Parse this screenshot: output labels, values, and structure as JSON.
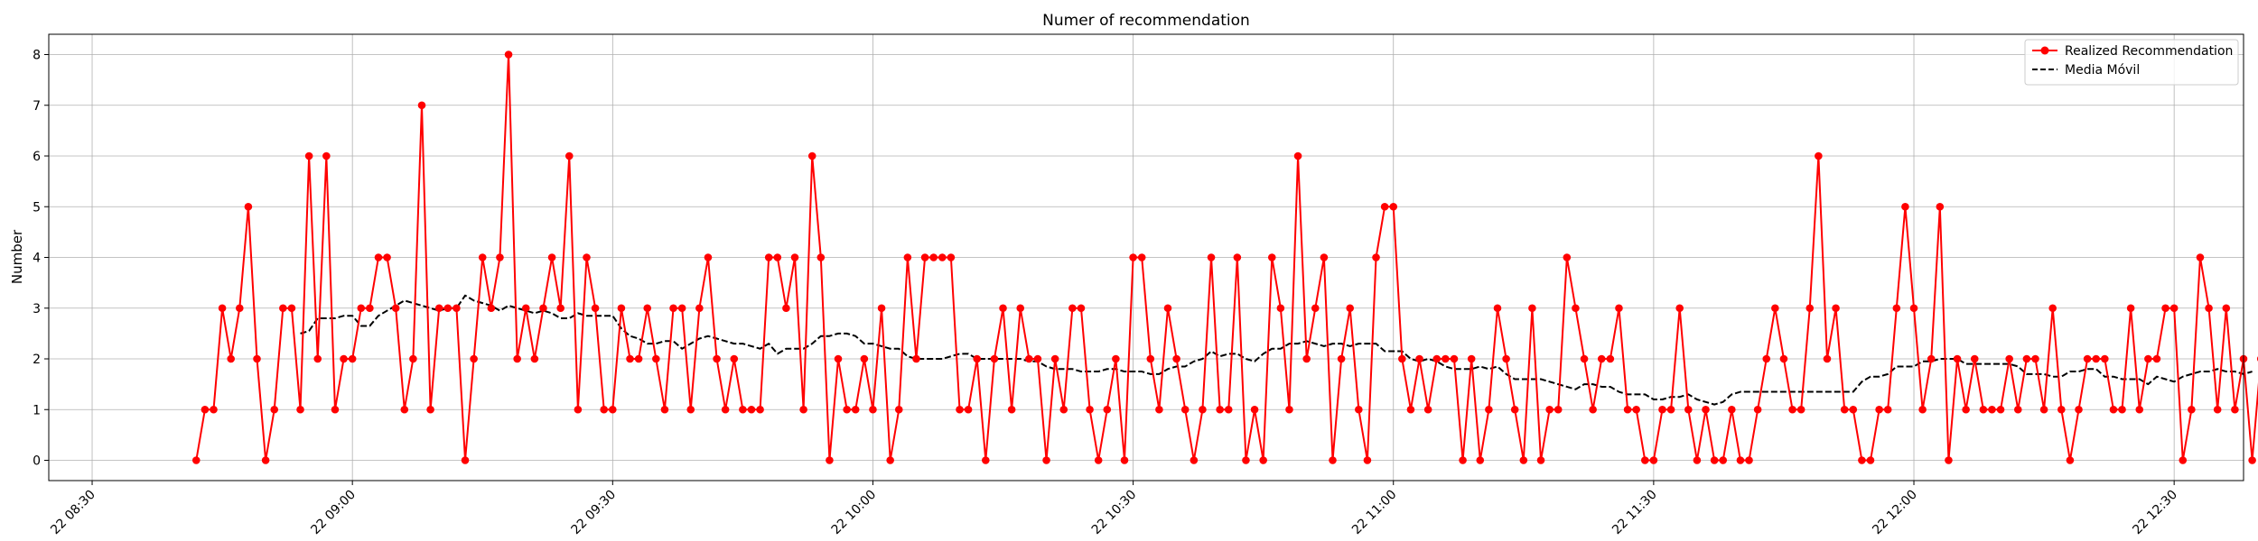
{
  "chart_data": {
    "type": "line",
    "title": "Numer of recommendation",
    "xlabel": "",
    "ylabel": "Number",
    "grid": true,
    "legend_position": "top-right",
    "xlim": [
      "2024-01-22T08:25",
      "2024-01-22T12:38"
    ],
    "ylim": [
      -0.4,
      8.4
    ],
    "x_start": "2024-01-22T08:42",
    "x_step_minutes": 1,
    "x_ticks": [
      {
        "value": "2024-01-22T08:30",
        "label": "22 08:30"
      },
      {
        "value": "2024-01-22T09:00",
        "label": "22 09:00"
      },
      {
        "value": "2024-01-22T09:30",
        "label": "22 09:30"
      },
      {
        "value": "2024-01-22T10:00",
        "label": "22 10:00"
      },
      {
        "value": "2024-01-22T10:30",
        "label": "22 10:30"
      },
      {
        "value": "2024-01-22T11:00",
        "label": "22 11:00"
      },
      {
        "value": "2024-01-22T11:30",
        "label": "22 11:30"
      },
      {
        "value": "2024-01-22T12:00",
        "label": "22 12:00"
      },
      {
        "value": "2024-01-22T12:30",
        "label": "22 12:30"
      }
    ],
    "y_ticks": [
      0,
      1,
      2,
      3,
      4,
      5,
      6,
      7,
      8
    ],
    "series": [
      {
        "name": "Realized Recommendation",
        "color": "#ff0000",
        "style": "solid",
        "marker": "circle",
        "values": [
          0,
          1,
          1,
          3,
          2,
          3,
          5,
          2,
          0,
          1,
          3,
          3,
          1,
          6,
          2,
          6,
          1,
          2,
          2,
          3,
          3,
          4,
          4,
          3,
          1,
          2,
          7,
          1,
          3,
          3,
          3,
          0,
          2,
          4,
          3,
          4,
          8,
          2,
          3,
          2,
          3,
          4,
          3,
          6,
          1,
          4,
          3,
          1,
          1,
          3,
          2,
          2,
          3,
          2,
          1,
          3,
          3,
          1,
          3,
          4,
          2,
          1,
          2,
          1,
          1,
          1,
          4,
          4,
          3,
          4,
          1,
          6,
          4,
          0,
          2,
          1,
          1,
          2,
          1,
          3,
          0,
          1,
          4,
          2,
          4,
          4,
          4,
          4,
          1,
          1,
          2,
          0,
          2,
          3,
          1,
          3,
          2,
          2,
          0,
          2,
          1,
          3,
          3,
          1,
          0,
          1,
          2,
          0,
          4,
          4,
          2,
          1,
          3,
          2,
          1,
          0,
          1,
          4,
          1,
          1,
          4,
          0,
          1,
          0,
          4,
          3,
          1,
          6,
          2,
          3,
          4,
          0,
          2,
          3,
          1,
          0,
          4,
          5,
          5,
          2,
          1,
          2,
          1,
          2,
          2,
          2,
          0,
          2,
          0,
          1,
          3,
          2,
          1,
          0,
          3,
          0,
          1,
          1,
          4,
          3,
          2,
          1,
          2,
          2,
          3,
          1,
          1,
          0,
          0,
          1,
          1,
          3,
          1,
          0,
          1,
          0,
          0,
          1,
          0,
          0,
          1,
          2,
          3,
          2,
          1,
          1,
          3,
          6,
          2,
          3,
          1,
          1,
          0,
          0,
          1,
          1,
          3,
          5,
          3,
          1,
          2,
          5,
          0,
          2,
          1,
          2,
          1,
          1,
          1,
          2,
          1,
          2,
          2,
          1,
          3,
          1,
          0,
          1,
          2,
          2,
          2,
          1,
          1,
          3,
          1,
          2,
          2,
          3,
          3,
          0,
          1,
          4,
          3,
          1,
          3,
          1,
          2,
          0,
          2
        ]
      },
      {
        "name": "Media Móvil",
        "color": "#000000",
        "style": "dashed",
        "marker": "none",
        "values": [
          null,
          null,
          null,
          null,
          null,
          null,
          null,
          null,
          null,
          null,
          null,
          null,
          2.5,
          2.55,
          2.8,
          2.8,
          2.8,
          2.85,
          2.85,
          2.65,
          2.65,
          2.85,
          2.95,
          3.05,
          3.15,
          3.1,
          3.05,
          3.0,
          2.95,
          3.0,
          3.0,
          3.25,
          3.15,
          3.1,
          3.05,
          2.95,
          3.05,
          3.0,
          2.95,
          2.9,
          2.95,
          2.9,
          2.8,
          2.8,
          2.9,
          2.85,
          2.85,
          2.85,
          2.85,
          2.6,
          2.45,
          2.4,
          2.3,
          2.3,
          2.35,
          2.35,
          2.2,
          2.3,
          2.4,
          2.45,
          2.4,
          2.35,
          2.3,
          2.3,
          2.25,
          2.2,
          2.3,
          2.1,
          2.2,
          2.2,
          2.2,
          2.3,
          2.45,
          2.45,
          2.5,
          2.5,
          2.45,
          2.3,
          2.3,
          2.25,
          2.2,
          2.2,
          2.05,
          2.0,
          2.0,
          2.0,
          2.0,
          2.05,
          2.1,
          2.1,
          2.0,
          2.0,
          2.0,
          2.0,
          2.0,
          2.0,
          1.95,
          1.95,
          1.85,
          1.8,
          1.8,
          1.8,
          1.75,
          1.75,
          1.75,
          1.8,
          1.8,
          1.75,
          1.75,
          1.75,
          1.7,
          1.7,
          1.8,
          1.85,
          1.85,
          1.95,
          2.0,
          2.15,
          2.05,
          2.1,
          2.1,
          2.0,
          1.95,
          2.1,
          2.2,
          2.2,
          2.3,
          2.3,
          2.35,
          2.3,
          2.25,
          2.3,
          2.3,
          2.25,
          2.3,
          2.3,
          2.3,
          2.15,
          2.15,
          2.15,
          2.0,
          1.95,
          2.0,
          1.95,
          1.85,
          1.8,
          1.8,
          1.8,
          1.85,
          1.8,
          1.85,
          1.7,
          1.6,
          1.6,
          1.6,
          1.6,
          1.55,
          1.5,
          1.45,
          1.4,
          1.5,
          1.5,
          1.45,
          1.45,
          1.35,
          1.3,
          1.3,
          1.3,
          1.2,
          1.2,
          1.25,
          1.25,
          1.3,
          1.2,
          1.15,
          1.1,
          1.15,
          1.3,
          1.35,
          1.35,
          1.35,
          1.35,
          1.35,
          1.35,
          1.35,
          1.35,
          1.35,
          1.35,
          1.35,
          1.35,
          1.35,
          1.35,
          1.55,
          1.65,
          1.65,
          1.7,
          1.85,
          1.85,
          1.85,
          1.95,
          1.95,
          2.0,
          2.0,
          2.0,
          1.9,
          1.9,
          1.9,
          1.9,
          1.9,
          1.9,
          1.85,
          1.7,
          1.7,
          1.7,
          1.65,
          1.65,
          1.75,
          1.75,
          1.8,
          1.8,
          1.65,
          1.65,
          1.6,
          1.6,
          1.6,
          1.5,
          1.65,
          1.6,
          1.55,
          1.65,
          1.7,
          1.75,
          1.75,
          1.8,
          1.75,
          1.75,
          1.7,
          1.75
        ]
      }
    ]
  }
}
